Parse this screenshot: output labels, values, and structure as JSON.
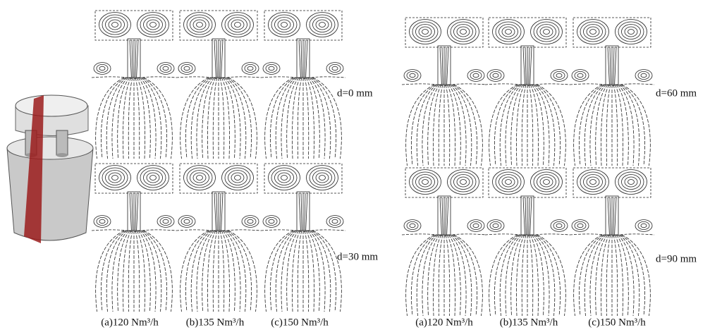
{
  "left_group": {
    "row_labels": [
      "d=0 mm",
      "d=30 mm"
    ],
    "captions": [
      "(a)120 Nm³/h",
      "(b)135 Nm³/h",
      "(c)150 Nm³/h"
    ]
  },
  "right_group": {
    "row_labels": [
      "d=60 mm",
      "d=90 mm"
    ],
    "captions": [
      "(a)120 Nm³/h",
      "(b)135 Nm³/h",
      "(c)150 Nm³/h"
    ]
  }
}
